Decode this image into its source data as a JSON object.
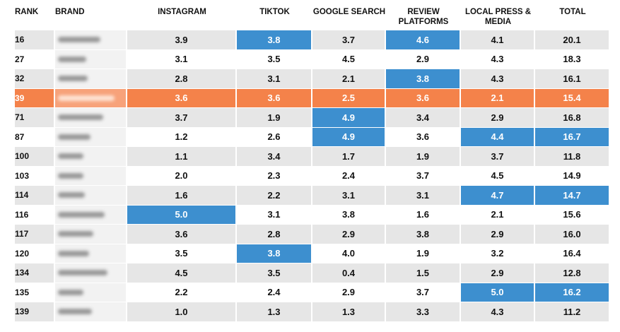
{
  "headers": {
    "rank": "RANK",
    "brand": "BRAND",
    "instagram": "INSTAGRAM",
    "tiktok": "TIKTOK",
    "google": "GOOGLE SEARCH",
    "review": "REVIEW PLATFORMS",
    "local": "LOCAL PRESS & MEDIA",
    "total": "TOTAL"
  },
  "colors": {
    "highlight_blue": "#3d8fcf",
    "highlight_row_orange": "#f4824a",
    "row_gray": "#e6e6e6"
  },
  "rows": [
    {
      "rank": "16",
      "instagram": "3.9",
      "tiktok": "3.8",
      "google": "3.7",
      "review": "4.6",
      "local": "4.1",
      "total": "20.1",
      "blue": [
        "tiktok",
        "review"
      ]
    },
    {
      "rank": "27",
      "instagram": "3.1",
      "tiktok": "3.5",
      "google": "4.5",
      "review": "2.9",
      "local": "4.3",
      "total": "18.3",
      "blue": []
    },
    {
      "rank": "32",
      "instagram": "2.8",
      "tiktok": "3.1",
      "google": "2.1",
      "review": "3.8",
      "local": "4.3",
      "total": "16.1",
      "blue": [
        "review"
      ]
    },
    {
      "rank": "39",
      "instagram": "3.6",
      "tiktok": "3.6",
      "google": "2.5",
      "review": "3.6",
      "local": "2.1",
      "total": "15.4",
      "blue": [],
      "highlighted": true
    },
    {
      "rank": "71",
      "instagram": "3.7",
      "tiktok": "1.9",
      "google": "4.9",
      "review": "3.4",
      "local": "2.9",
      "total": "16.8",
      "blue": [
        "google"
      ]
    },
    {
      "rank": "87",
      "instagram": "1.2",
      "tiktok": "2.6",
      "google": "4.9",
      "review": "3.6",
      "local": "4.4",
      "total": "16.7",
      "blue": [
        "google",
        "local",
        "total"
      ]
    },
    {
      "rank": "100",
      "instagram": "1.1",
      "tiktok": "3.4",
      "google": "1.7",
      "review": "1.9",
      "local": "3.7",
      "total": "11.8",
      "blue": []
    },
    {
      "rank": "103",
      "instagram": "2.0",
      "tiktok": "2.3",
      "google": "2.4",
      "review": "3.7",
      "local": "4.5",
      "total": "14.9",
      "blue": []
    },
    {
      "rank": "114",
      "instagram": "1.6",
      "tiktok": "2.2",
      "google": "3.1",
      "review": "3.1",
      "local": "4.7",
      "total": "14.7",
      "blue": [
        "local",
        "total"
      ]
    },
    {
      "rank": "116",
      "instagram": "5.0",
      "tiktok": "3.1",
      "google": "3.8",
      "review": "1.6",
      "local": "2.1",
      "total": "15.6",
      "blue": [
        "instagram"
      ]
    },
    {
      "rank": "117",
      "instagram": "3.6",
      "tiktok": "2.8",
      "google": "2.9",
      "review": "3.8",
      "local": "2.9",
      "total": "16.0",
      "blue": []
    },
    {
      "rank": "120",
      "instagram": "3.5",
      "tiktok": "3.8",
      "google": "4.0",
      "review": "1.9",
      "local": "3.2",
      "total": "16.4",
      "blue": [
        "tiktok"
      ]
    },
    {
      "rank": "134",
      "instagram": "4.5",
      "tiktok": "3.5",
      "google": "0.4",
      "review": "1.5",
      "local": "2.9",
      "total": "12.8",
      "blue": []
    },
    {
      "rank": "135",
      "instagram": "2.2",
      "tiktok": "2.4",
      "google": "2.9",
      "review": "3.7",
      "local": "5.0",
      "total": "16.2",
      "blue": [
        "local",
        "total"
      ]
    },
    {
      "rank": "139",
      "instagram": "1.0",
      "tiktok": "1.3",
      "google": "1.3",
      "review": "3.3",
      "local": "4.3",
      "total": "11.2",
      "blue": []
    }
  ]
}
